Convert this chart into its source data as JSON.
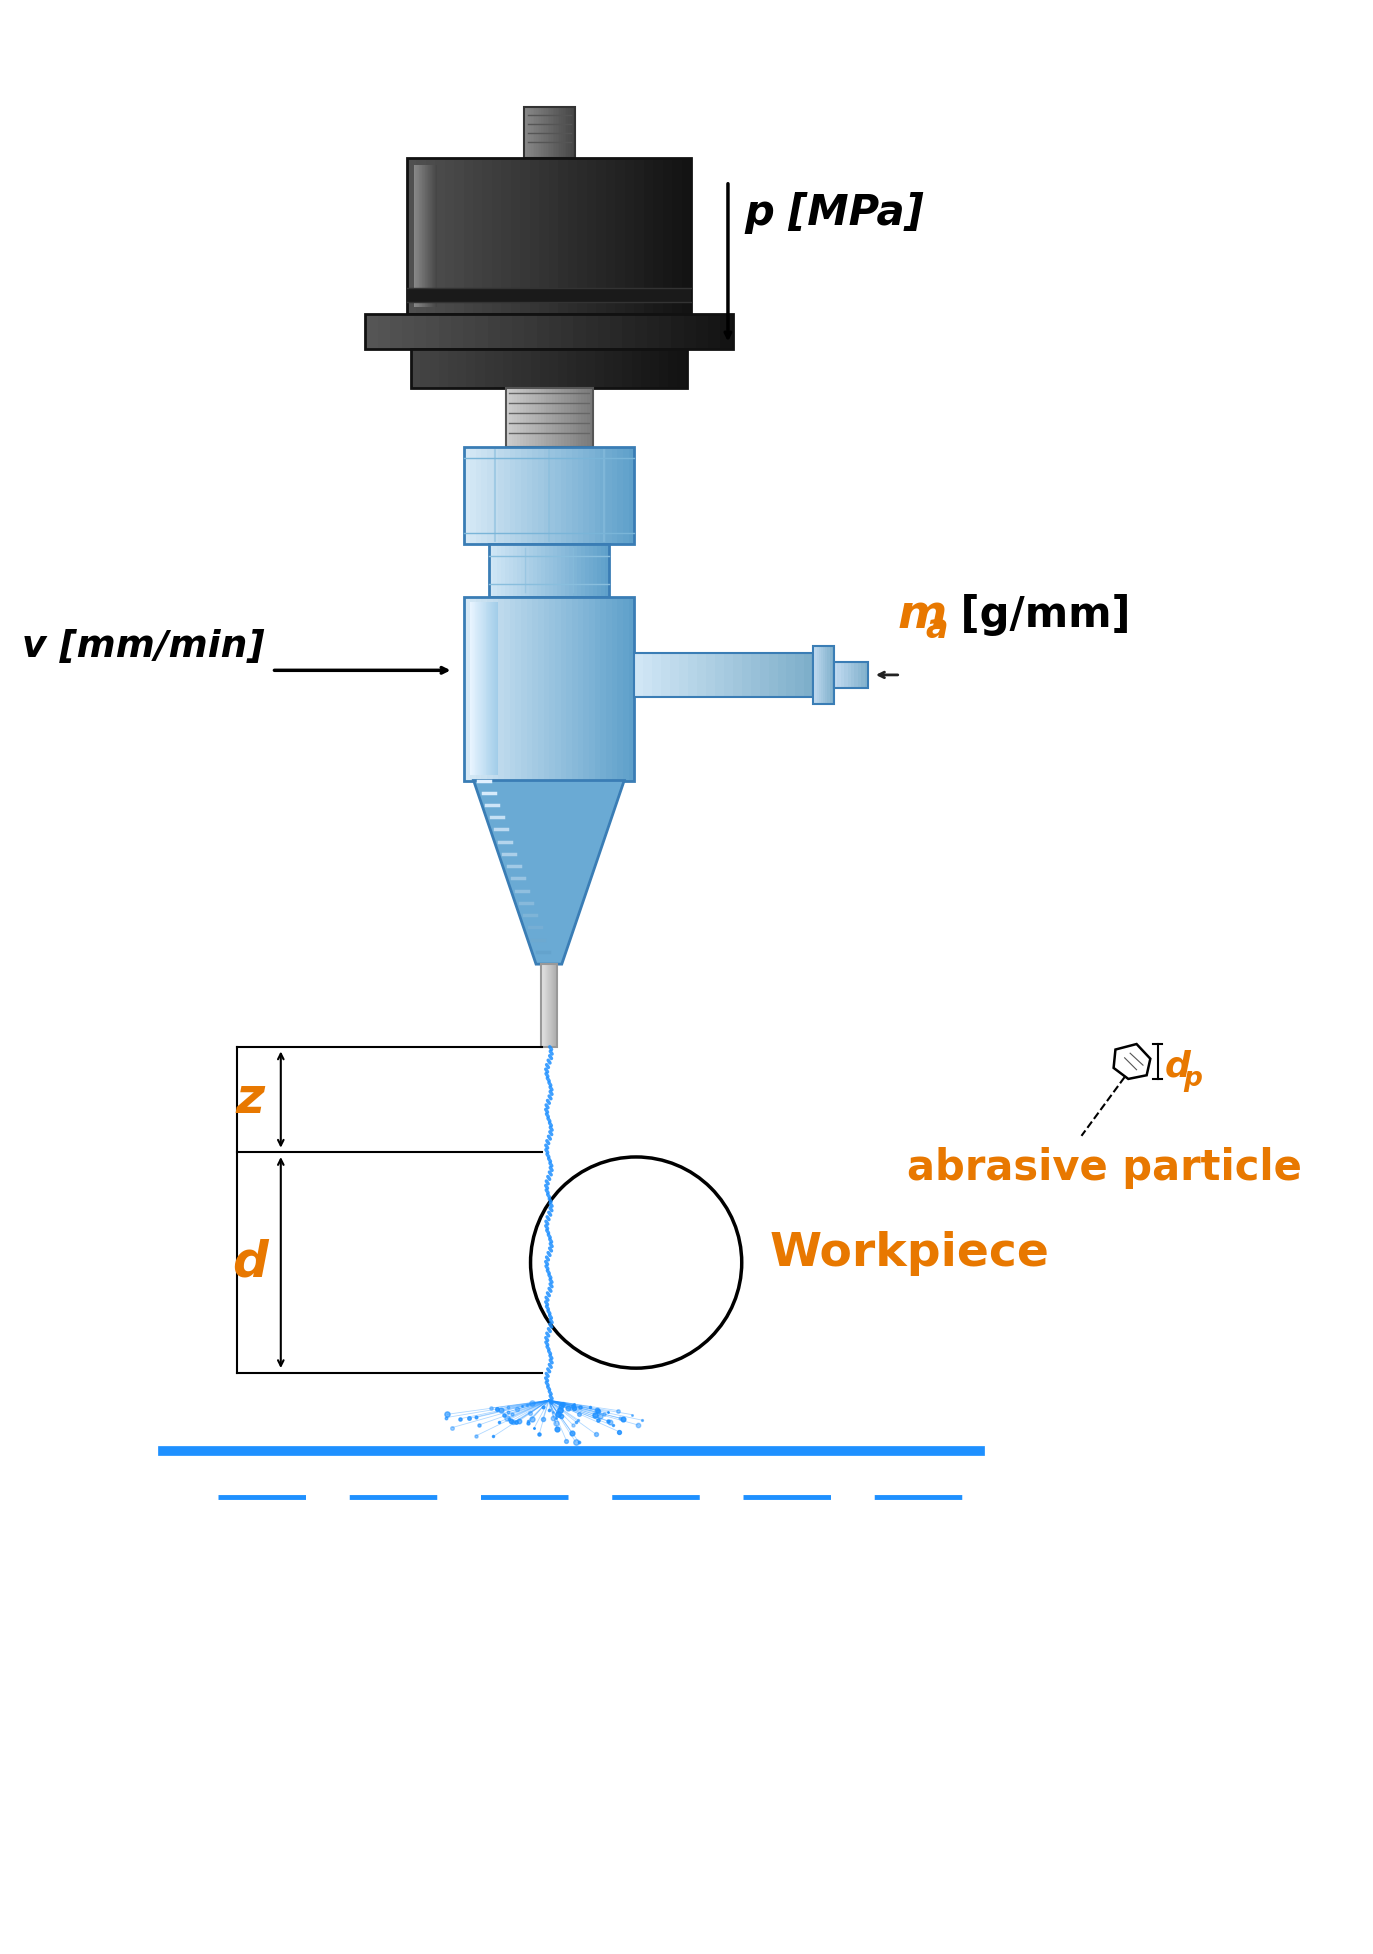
{
  "bg_color": "#ffffff",
  "text_color_orange": "#E87800",
  "text_color_black": "#000000",
  "blue_jet": "#1E90FF",
  "blue_light": "#b8d8f0",
  "blue_mid": "#6aaad4",
  "blue_dark": "#3a7db5",
  "dark1": "#111111",
  "dark2": "#2a2a2a",
  "dark3": "#444444",
  "gray1": "#aaaaaa",
  "gray2": "#666666",
  "gray3": "#999999",
  "label_p": "p [MPa]",
  "label_v": "v [mm/min]",
  "label_ma_italic": "m",
  "label_ma_sub": "a",
  "label_ma_unit": " [g/mm]",
  "label_z": "z",
  "label_d": "d",
  "label_workpiece": "Workpiece",
  "label_abrasive": "abrasive particle",
  "label_dp": "d",
  "label_dp_sub": "p"
}
